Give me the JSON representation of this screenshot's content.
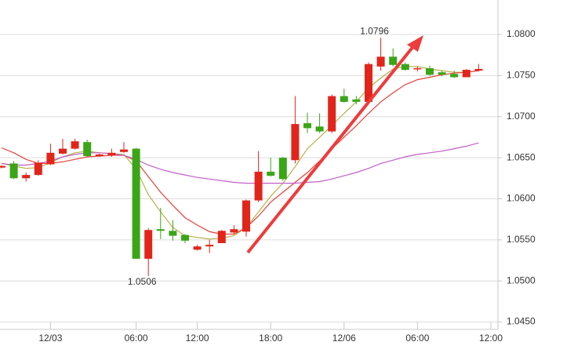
{
  "chart_data": {
    "type": "candlestick",
    "categories": [
      null,
      null,
      null,
      null,
      "12/03",
      null,
      null,
      null,
      null,
      null,
      null,
      "06:00",
      null,
      null,
      null,
      null,
      "12:00",
      null,
      null,
      null,
      null,
      null,
      "18:00",
      null,
      null,
      null,
      null,
      null,
      "12/06",
      null,
      null,
      null,
      null,
      null,
      "06:00",
      null,
      null,
      null,
      null,
      null,
      "12:00"
    ],
    "open": [
      1.0638,
      1.0643,
      1.0625,
      1.0629,
      1.0642,
      1.0655,
      1.0661,
      1.0669,
      1.0652,
      1.0653,
      1.0657,
      1.0661,
      1.0527,
      1.0563,
      1.0561,
      1.0556,
      1.0538,
      1.0542,
      1.0546,
      1.0559,
      1.056,
      1.0598,
      1.0633,
      1.065,
      1.0647,
      1.0692,
      1.0688,
      1.0682,
      1.0725,
      1.0721,
      1.0718,
      1.0761,
      1.0773,
      1.0764,
      1.0758,
      1.0759,
      1.0754,
      1.0752,
      1.0748,
      1.0756,
      null
    ],
    "high": [
      1.0641,
      1.0646,
      1.0632,
      1.0647,
      1.0667,
      1.0673,
      1.0673,
      1.0672,
      1.0655,
      1.0661,
      1.0669,
      1.0662,
      1.0564,
      1.0589,
      1.0574,
      1.0557,
      1.0544,
      1.055,
      1.0562,
      1.0568,
      1.0599,
      1.0658,
      1.065,
      1.0651,
      1.0725,
      1.0705,
      1.0704,
      1.0727,
      1.0734,
      1.0725,
      1.0766,
      1.0796,
      1.0783,
      1.0766,
      1.0761,
      1.0762,
      1.0756,
      1.0756,
      1.0758,
      1.0764,
      null
    ],
    "low": [
      1.0637,
      1.0624,
      1.0621,
      1.0628,
      1.0641,
      1.0654,
      1.066,
      1.0651,
      1.0651,
      1.0651,
      1.0656,
      1.0527,
      1.0506,
      1.0551,
      1.0549,
      1.0546,
      1.0537,
      1.0534,
      1.0546,
      1.0557,
      1.0554,
      1.0596,
      1.0627,
      1.0622,
      1.0643,
      1.068,
      1.068,
      1.068,
      1.0717,
      1.0715,
      1.0717,
      1.0756,
      1.0761,
      1.0756,
      1.0755,
      1.075,
      1.0749,
      1.0747,
      1.0748,
      1.0755,
      null
    ],
    "close": [
      1.064,
      1.0625,
      1.0629,
      1.0644,
      1.0656,
      1.0661,
      1.067,
      1.0652,
      1.0654,
      1.0656,
      1.066,
      1.0527,
      1.0562,
      1.0561,
      1.0555,
      1.0549,
      1.0542,
      1.0544,
      1.0561,
      1.0563,
      1.0598,
      1.0633,
      1.0628,
      1.0624,
      1.0691,
      1.0686,
      1.0682,
      1.0725,
      1.0718,
      1.0718,
      1.0764,
      1.0773,
      1.0763,
      1.0757,
      1.0759,
      1.0751,
      1.0751,
      1.0748,
      1.0757,
      1.0758,
      null
    ],
    "up_color": "#e1251b",
    "down_color": "#3aa517",
    "ma_lines": [
      {
        "color": "#b8b04a",
        "values": [
          1.0643,
          1.064,
          1.0637,
          1.0638,
          1.0644,
          1.0651,
          1.0656,
          1.0658,
          1.0656,
          1.0655,
          1.0654,
          1.0636,
          1.0605,
          1.0584,
          1.0565,
          1.0555,
          1.0553,
          1.0551,
          1.0552,
          1.0555,
          1.0565,
          1.0584,
          1.0603,
          1.0619,
          1.0639,
          1.0661,
          1.0675,
          1.0689,
          1.0704,
          1.0718,
          1.0735,
          1.0747,
          1.0758,
          1.0761,
          1.0761,
          1.0758,
          1.0756,
          1.0754,
          1.0754,
          1.0756,
          null
        ]
      },
      {
        "color": "#e8403a",
        "values": [
          1.0662,
          1.0656,
          1.0648,
          1.0643,
          1.0643,
          1.0645,
          1.0648,
          1.0651,
          1.0652,
          1.0653,
          1.0653,
          1.0646,
          1.0627,
          1.0608,
          1.0592,
          1.0577,
          1.0568,
          1.056,
          1.0557,
          1.0557,
          1.0565,
          1.0579,
          1.0596,
          1.0608,
          1.062,
          1.0632,
          1.0646,
          1.0661,
          1.0675,
          1.0689,
          1.0704,
          1.0718,
          1.0729,
          1.0739,
          1.0745,
          1.0748,
          1.0751,
          1.0753,
          1.0754,
          1.0756,
          null
        ]
      },
      {
        "color": "#c060c8",
        "values": [
          1.0643,
          1.0641,
          1.0641,
          1.0643,
          1.0646,
          1.0651,
          1.0654,
          1.0656,
          1.0656,
          1.0655,
          1.0653,
          1.0648,
          1.0641,
          1.0636,
          1.0632,
          1.0629,
          1.0626,
          1.0624,
          1.0622,
          1.062,
          1.0619,
          1.0619,
          1.0619,
          1.0619,
          1.0619,
          1.062,
          1.0621,
          1.0624,
          1.0628,
          1.0632,
          1.0637,
          1.0643,
          1.0647,
          1.0651,
          1.0654,
          1.0656,
          1.0658,
          1.0661,
          1.0664,
          1.0668,
          null
        ]
      }
    ],
    "high_label": "1.0796",
    "low_label": "1.0506",
    "ylim": [
      1.0441,
      1.0842
    ],
    "yticks": [
      {
        "value": 1.045,
        "label": "1.0450"
      },
      {
        "value": 1.05,
        "label": "1.0500"
      },
      {
        "value": 1.055,
        "label": "1.0550"
      },
      {
        "value": 1.06,
        "label": "1.0600"
      },
      {
        "value": 1.065,
        "label": "1.0650"
      },
      {
        "value": 1.07,
        "label": "1.0700"
      },
      {
        "value": 1.075,
        "label": "1.0750"
      },
      {
        "value": 1.08,
        "label": "1.0800"
      }
    ],
    "grid": true
  }
}
